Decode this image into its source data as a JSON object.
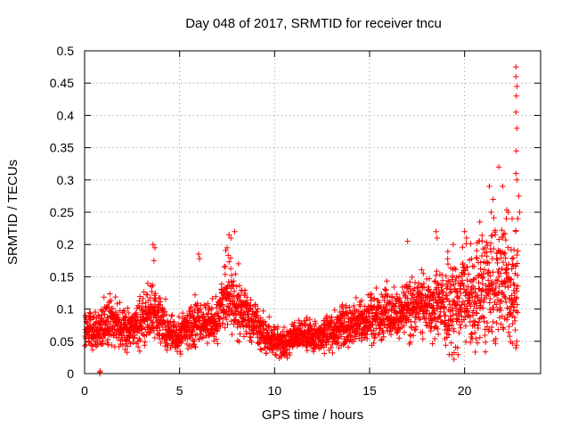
{
  "chart_data": {
    "type": "scatter",
    "title": "Day 048 of 2017, SRMTID for receiver tncu",
    "xlabel": "GPS time / hours",
    "ylabel": "SRMTID / TECUs",
    "xlim": [
      0,
      24
    ],
    "ylim": [
      0,
      0.5
    ],
    "xticks": [
      0,
      5,
      10,
      15,
      20
    ],
    "xtick_labels": [
      "0",
      "5",
      "10",
      "15",
      "20"
    ],
    "yticks": [
      0,
      0.05,
      0.1,
      0.15,
      0.2,
      0.25,
      0.3,
      0.35,
      0.4,
      0.45,
      0.5
    ],
    "ytick_labels": [
      "0",
      "0.05",
      "0.1",
      "0.15",
      "0.2",
      "0.25",
      "0.3",
      "0.35",
      "0.4",
      "0.45",
      "0.5"
    ],
    "grid": true,
    "marker": "plus",
    "color": "#ff0000",
    "series": [
      {
        "name": "SRMTID",
        "trend": [
          [
            0.0,
            0.07
          ],
          [
            0.5,
            0.065
          ],
          [
            1.0,
            0.075
          ],
          [
            1.5,
            0.08
          ],
          [
            2.0,
            0.075
          ],
          [
            2.5,
            0.072
          ],
          [
            3.0,
            0.08
          ],
          [
            3.5,
            0.1
          ],
          [
            4.0,
            0.085
          ],
          [
            4.5,
            0.06
          ],
          [
            5.0,
            0.06
          ],
          [
            5.5,
            0.075
          ],
          [
            6.0,
            0.08
          ],
          [
            6.5,
            0.075
          ],
          [
            7.0,
            0.085
          ],
          [
            7.5,
            0.13
          ],
          [
            8.0,
            0.1
          ],
          [
            8.5,
            0.09
          ],
          [
            9.0,
            0.075
          ],
          [
            9.5,
            0.06
          ],
          [
            10.0,
            0.05
          ],
          [
            10.5,
            0.045
          ],
          [
            11.0,
            0.055
          ],
          [
            11.5,
            0.06
          ],
          [
            12.0,
            0.055
          ],
          [
            12.5,
            0.06
          ],
          [
            13.0,
            0.065
          ],
          [
            13.5,
            0.075
          ],
          [
            14.0,
            0.075
          ],
          [
            14.5,
            0.08
          ],
          [
            15.0,
            0.085
          ],
          [
            15.5,
            0.085
          ],
          [
            16.0,
            0.09
          ],
          [
            16.5,
            0.09
          ],
          [
            17.0,
            0.1
          ],
          [
            17.5,
            0.105
          ],
          [
            18.0,
            0.1
          ],
          [
            18.5,
            0.11
          ],
          [
            19.0,
            0.105
          ],
          [
            19.5,
            0.105
          ],
          [
            20.0,
            0.11
          ],
          [
            20.5,
            0.12
          ],
          [
            21.0,
            0.13
          ],
          [
            21.5,
            0.14
          ],
          [
            22.0,
            0.135
          ],
          [
            22.5,
            0.12
          ],
          [
            22.8,
            0.15
          ]
        ],
        "peaks": [
          [
            3.6,
            0.2
          ],
          [
            3.7,
            0.195
          ],
          [
            3.65,
            0.175
          ],
          [
            6.0,
            0.185
          ],
          [
            6.05,
            0.178
          ],
          [
            7.6,
            0.215
          ],
          [
            7.7,
            0.21
          ],
          [
            7.9,
            0.22
          ],
          [
            7.5,
            0.195
          ],
          [
            8.1,
            0.17
          ],
          [
            17.0,
            0.205
          ],
          [
            18.5,
            0.22
          ],
          [
            18.55,
            0.21
          ],
          [
            19.4,
            0.2
          ],
          [
            20.0,
            0.22
          ],
          [
            20.1,
            0.21
          ],
          [
            20.8,
            0.235
          ],
          [
            21.3,
            0.29
          ],
          [
            21.5,
            0.27
          ],
          [
            21.4,
            0.25
          ],
          [
            21.8,
            0.32
          ],
          [
            22.0,
            0.29
          ],
          [
            22.2,
            0.24
          ],
          [
            22.3,
            0.25
          ],
          [
            22.5,
            0.24
          ],
          [
            22.7,
            0.475
          ],
          [
            22.7,
            0.46
          ],
          [
            22.75,
            0.445
          ],
          [
            22.72,
            0.43
          ],
          [
            22.7,
            0.405
          ],
          [
            22.75,
            0.38
          ],
          [
            22.72,
            0.345
          ],
          [
            22.7,
            0.31
          ],
          [
            22.75,
            0.3
          ],
          [
            22.85,
            0.275
          ],
          [
            22.9,
            0.25
          ],
          [
            22.8,
            0.24
          ],
          [
            22.8,
            0.19
          ],
          [
            22.7,
            0.04
          ],
          [
            22.75,
            0.05
          ]
        ],
        "zeros": [
          [
            0.8,
            0.0
          ],
          [
            0.8,
            0.002
          ],
          [
            0.82,
            0.004
          ]
        ]
      }
    ]
  }
}
